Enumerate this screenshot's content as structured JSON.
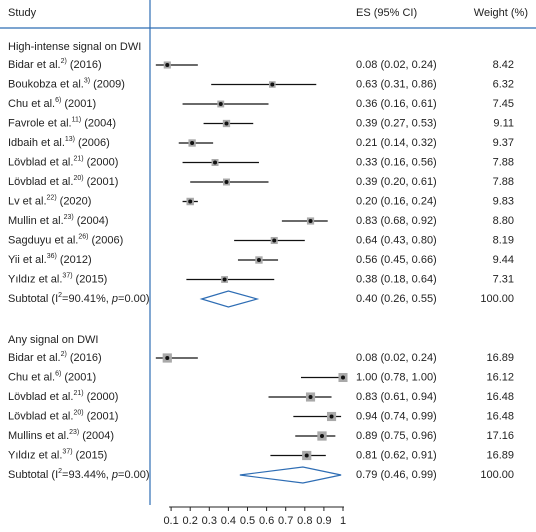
{
  "chart_data": {
    "type": "forest",
    "columns": [
      "Study",
      "ES (95% CI)",
      "Weight (%)"
    ],
    "xlim": [
      0,
      1
    ],
    "xticks": [
      0.1,
      0.2,
      0.3,
      0.4,
      0.5,
      0.6,
      0.7,
      0.8,
      0.9,
      1
    ],
    "groups": [
      {
        "title": "High-intense signal on DWI",
        "rows": [
          {
            "study": "Bidar et al.",
            "ref": "2)",
            "year": "(2016)",
            "es": 0.08,
            "lo": 0.02,
            "hi": 0.24,
            "es_label": "0.08 (0.02, 0.24)",
            "weight": 8.42
          },
          {
            "study": "Boukobza et al.",
            "ref": "3)",
            "year": "(2009)",
            "es": 0.63,
            "lo": 0.31,
            "hi": 0.86,
            "es_label": "0.63 (0.31, 0.86)",
            "weight": 6.32
          },
          {
            "study": "Chu et al.",
            "ref": "6)",
            "year": "(2001)",
            "es": 0.36,
            "lo": 0.16,
            "hi": 0.61,
            "es_label": "0.36 (0.16, 0.61)",
            "weight": 7.45
          },
          {
            "study": "Favrole et al.",
            "ref": "11)",
            "year": "(2004)",
            "es": 0.39,
            "lo": 0.27,
            "hi": 0.53,
            "es_label": "0.39 (0.27, 0.53)",
            "weight": 9.11
          },
          {
            "study": "Idbaih et al.",
            "ref": "13)",
            "year": "(2006)",
            "es": 0.21,
            "lo": 0.14,
            "hi": 0.32,
            "es_label": "0.21 (0.14, 0.32)",
            "weight": 9.37
          },
          {
            "study": "Lövblad et al.",
            "ref": "21)",
            "year": "(2000)",
            "es": 0.33,
            "lo": 0.16,
            "hi": 0.56,
            "es_label": "0.33 (0.16, 0.56)",
            "weight": 7.88
          },
          {
            "study": "Lövblad et al.",
            "ref": "20)",
            "year": "(2001)",
            "es": 0.39,
            "lo": 0.2,
            "hi": 0.61,
            "es_label": "0.39 (0.20, 0.61)",
            "weight": 7.88
          },
          {
            "study": "Lv et al.",
            "ref": "22)",
            "year": "(2020)",
            "es": 0.2,
            "lo": 0.16,
            "hi": 0.24,
            "es_label": "0.20 (0.16, 0.24)",
            "weight": 9.83
          },
          {
            "study": "Mullin et al.",
            "ref": "23)",
            "year": "(2004)",
            "es": 0.83,
            "lo": 0.68,
            "hi": 0.92,
            "es_label": "0.83 (0.68, 0.92)",
            "weight": 8.8,
            "weight_label": "8.80"
          },
          {
            "study": "Sagduyu et al.",
            "ref": "26)",
            "year": "(2006)",
            "es": 0.64,
            "lo": 0.43,
            "hi": 0.8,
            "es_label": "0.64 (0.43, 0.80)",
            "weight": 8.19
          },
          {
            "study": "Yii et al.",
            "ref": "36)",
            "year": "(2012)",
            "es": 0.56,
            "lo": 0.45,
            "hi": 0.66,
            "es_label": "0.56 (0.45, 0.66)",
            "weight": 9.44
          },
          {
            "study": "Yıldız et al.",
            "ref": "37)",
            "year": "(2015)",
            "es": 0.38,
            "lo": 0.18,
            "hi": 0.64,
            "es_label": "0.38 (0.18, 0.64)",
            "weight": 7.31
          }
        ],
        "subtotal": {
          "label_parts": [
            "Subtotal (I",
            "2",
            "=90.41%, ",
            "p",
            "=0.00)"
          ],
          "es": 0.4,
          "lo": 0.26,
          "hi": 0.55,
          "es_label": "0.40 (0.26, 0.55)",
          "weight": 100,
          "weight_label": "100.00"
        }
      },
      {
        "title": "Any signal on DWI",
        "rows": [
          {
            "study": "Bidar et al.",
            "ref": "2)",
            "year": "(2016)",
            "es": 0.08,
            "lo": 0.02,
            "hi": 0.24,
            "es_label": "0.08 (0.02, 0.24)",
            "weight": 16.89
          },
          {
            "study": "Chu et al.",
            "ref": "6)",
            "year": "(2001)",
            "es": 1.0,
            "lo": 0.78,
            "hi": 1.0,
            "es_label": "1.00 (0.78, 1.00)",
            "weight": 16.12
          },
          {
            "study": "Lövblad et al.",
            "ref": "21)",
            "year": "(2000)",
            "es": 0.83,
            "lo": 0.61,
            "hi": 0.94,
            "es_label": "0.83 (0.61, 0.94)",
            "weight": 16.48
          },
          {
            "study": "Lövblad et al.",
            "ref": "20)",
            "year": "(2001)",
            "es": 0.94,
            "lo": 0.74,
            "hi": 0.99,
            "es_label": "0.94 (0.74, 0.99)",
            "weight": 16.48
          },
          {
            "study": "Mullins et al.",
            "ref": "23)",
            "year": "(2004)",
            "es": 0.89,
            "lo": 0.75,
            "hi": 0.96,
            "es_label": "0.89 (0.75, 0.96)",
            "weight": 17.16
          },
          {
            "study": "Yıldız et al.",
            "ref": "37)",
            "year": "(2015)",
            "es": 0.81,
            "lo": 0.62,
            "hi": 0.91,
            "es_label": "0.81 (0.62, 0.91)",
            "weight": 16.89
          }
        ],
        "subtotal": {
          "label_parts": [
            "Subtotal (I",
            "2",
            "=93.44%, ",
            "p",
            "=0.00)"
          ],
          "es": 0.79,
          "lo": 0.46,
          "hi": 0.99,
          "es_label": "0.79 (0.46, 0.99)",
          "weight": 100,
          "weight_label": "100.00"
        }
      }
    ]
  }
}
